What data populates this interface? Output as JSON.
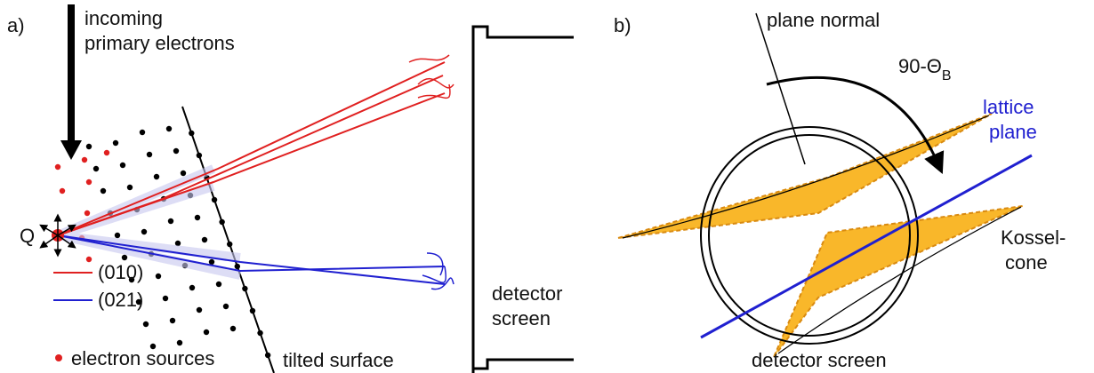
{
  "panel_a": {
    "label": "a)",
    "incoming": [
      "incoming",
      "primary electrons"
    ],
    "source_point": "Q",
    "legend": [
      "(010)",
      "(021)",
      "electron sources"
    ],
    "surface": "tilted surface",
    "detector": [
      "detector",
      "screen"
    ]
  },
  "panel_b": {
    "label": "b)",
    "normal": "plane normal",
    "angle": {
      "text": "90-Θ",
      "subscript": "B"
    },
    "lattice": [
      "lattice",
      "plane"
    ],
    "cone": [
      "Kossel-",
      "cone"
    ],
    "detector": "detector screen"
  }
}
